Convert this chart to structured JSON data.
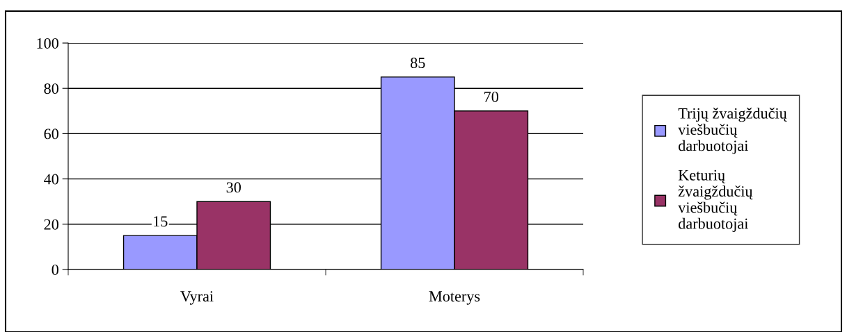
{
  "chart_data": {
    "type": "bar",
    "categories": [
      "Vyrai",
      "Moterys"
    ],
    "series": [
      {
        "name": "Trijų žvaigždučių viešbučių darbuotojai",
        "color": "#9999ff",
        "values": [
          15,
          85
        ]
      },
      {
        "name": "Keturių žvaigždučių viešbučių darbuotojai",
        "color": "#993366",
        "values": [
          30,
          70
        ]
      }
    ],
    "ylim": [
      0,
      100
    ],
    "yticks": [
      0,
      20,
      40,
      60,
      80,
      100
    ],
    "grid": "y",
    "legend": "right",
    "data_labels": true
  }
}
